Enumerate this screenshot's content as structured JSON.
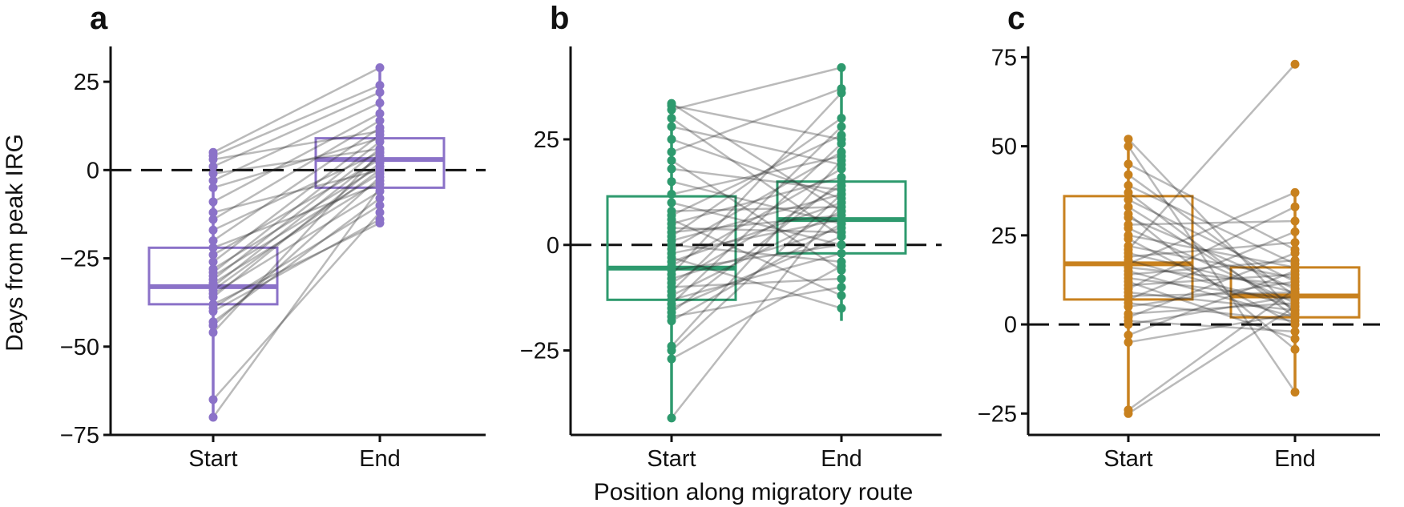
{
  "figure": {
    "ylabel": "Days from peak IRG",
    "xlabel": "Position along migratory route"
  },
  "chart_data": [
    {
      "type": "box",
      "panel": "a",
      "color": "#8b72c8",
      "categories": [
        "Start",
        "End"
      ],
      "yticks": [
        25,
        0,
        -25,
        -50,
        -75
      ],
      "ytick_labels": [
        "25",
        "0",
        "−25",
        "−50",
        "−75"
      ],
      "ylim": [
        -75,
        35
      ],
      "reference_line": 0,
      "boxes": [
        {
          "category": "Start",
          "q1": -38,
          "median": -33,
          "q3": -22,
          "whisker_low": -70,
          "whisker_high": 5
        },
        {
          "category": "End",
          "q1": -5,
          "median": 3,
          "q3": 9,
          "whisker_low": -16,
          "whisker_high": 29
        }
      ],
      "pairs": [
        [
          -70,
          -5
        ],
        [
          -65,
          -12
        ],
        [
          -46,
          5
        ],
        [
          -44,
          -2
        ],
        [
          -43,
          -8
        ],
        [
          -40,
          -14
        ],
        [
          -39,
          -10
        ],
        [
          -38,
          -15
        ],
        [
          -36,
          2
        ],
        [
          -35,
          -6
        ],
        [
          -34,
          0
        ],
        [
          -33,
          4
        ],
        [
          -32,
          -3
        ],
        [
          -31,
          6
        ],
        [
          -30,
          -1
        ],
        [
          -29,
          8
        ],
        [
          -28,
          1
        ],
        [
          -26,
          10
        ],
        [
          -24,
          3
        ],
        [
          -22,
          -4
        ],
        [
          -20,
          12
        ],
        [
          -17,
          5
        ],
        [
          -14,
          14
        ],
        [
          -12,
          0
        ],
        [
          -9,
          16
        ],
        [
          -5,
          9
        ],
        [
          -3,
          19
        ],
        [
          -1,
          6
        ],
        [
          1,
          22
        ],
        [
          3,
          11
        ],
        [
          4,
          24
        ],
        [
          5,
          29
        ]
      ]
    },
    {
      "type": "box",
      "panel": "b",
      "color": "#2e9a6e",
      "categories": [
        "Start",
        "End"
      ],
      "yticks": [
        25,
        0,
        -25
      ],
      "ytick_labels": [
        "25",
        "0",
        "−25"
      ],
      "ylim": [
        -45,
        47
      ],
      "reference_line": 0,
      "boxes": [
        {
          "category": "Start",
          "q1": -13,
          "median": -5.5,
          "q3": 11.5,
          "whisker_low": -41,
          "whisker_high": 33.5
        },
        {
          "category": "End",
          "q1": -2,
          "median": 6,
          "q3": 15,
          "whisker_low": -18,
          "whisker_high": 42
        }
      ],
      "pairs": [
        [
          -41,
          10
        ],
        [
          -27,
          -5
        ],
        [
          -25,
          12
        ],
        [
          -24,
          20
        ],
        [
          -18,
          5
        ],
        [
          -17,
          -10
        ],
        [
          -16,
          15
        ],
        [
          -15,
          2
        ],
        [
          -14,
          24
        ],
        [
          -13,
          -2
        ],
        [
          -12,
          8
        ],
        [
          -11,
          28
        ],
        [
          -10,
          -8
        ],
        [
          -9,
          14
        ],
        [
          -8,
          4
        ],
        [
          -7,
          36
        ],
        [
          -6,
          0
        ],
        [
          -5,
          18
        ],
        [
          -4,
          10
        ],
        [
          -3,
          -15
        ],
        [
          -2,
          6
        ],
        [
          -1,
          22
        ],
        [
          0,
          -4
        ],
        [
          1,
          12
        ],
        [
          2,
          30
        ],
        [
          3,
          7
        ],
        [
          4,
          3
        ],
        [
          5,
          16
        ],
        [
          6,
          -12
        ],
        [
          7,
          26
        ],
        [
          8,
          9
        ],
        [
          10,
          0
        ],
        [
          12,
          21
        ],
        [
          15,
          5
        ],
        [
          18,
          13
        ],
        [
          20,
          -6
        ],
        [
          22,
          37
        ],
        [
          25,
          11
        ],
        [
          28,
          19
        ],
        [
          30,
          2
        ],
        [
          32,
          42
        ],
        [
          33,
          25
        ],
        [
          33.5,
          8
        ]
      ]
    },
    {
      "type": "box",
      "panel": "c",
      "color": "#c8811e",
      "categories": [
        "Start",
        "End"
      ],
      "yticks": [
        75,
        50,
        25,
        0,
        -25
      ],
      "ytick_labels": [
        "75",
        "50",
        "25",
        "0",
        "−25"
      ],
      "ylim": [
        -31,
        78
      ],
      "reference_line": 0,
      "boxes": [
        {
          "category": "Start",
          "q1": 7,
          "median": 17,
          "q3": 36,
          "whisker_low": -25,
          "whisker_high": 52
        },
        {
          "category": "End",
          "q1": 2,
          "median": 8,
          "q3": 16,
          "whisker_low": -19,
          "whisker_high": 37
        }
      ],
      "pairs": [
        [
          -25,
          5
        ],
        [
          -24,
          10
        ],
        [
          -5,
          3
        ],
        [
          -3,
          15
        ],
        [
          0,
          8
        ],
        [
          1,
          -2
        ],
        [
          2,
          20
        ],
        [
          3,
          6
        ],
        [
          5,
          12
        ],
        [
          6,
          1
        ],
        [
          7,
          26
        ],
        [
          8,
          9
        ],
        [
          9,
          4
        ],
        [
          10,
          33
        ],
        [
          11,
          14
        ],
        [
          12,
          -4
        ],
        [
          13,
          7
        ],
        [
          14,
          18
        ],
        [
          15,
          2
        ],
        [
          16,
          11
        ],
        [
          17,
          37
        ],
        [
          18,
          5
        ],
        [
          19,
          23
        ],
        [
          20,
          9
        ],
        [
          21,
          73
        ],
        [
          22,
          13
        ],
        [
          24,
          0
        ],
        [
          25,
          16
        ],
        [
          27,
          6
        ],
        [
          28,
          29
        ],
        [
          30,
          10
        ],
        [
          31,
          -7
        ],
        [
          33,
          4
        ],
        [
          35,
          12
        ],
        [
          37,
          2
        ],
        [
          39,
          17
        ],
        [
          42,
          8
        ],
        [
          45,
          21
        ],
        [
          50,
          -19
        ],
        [
          52,
          3
        ]
      ]
    }
  ]
}
